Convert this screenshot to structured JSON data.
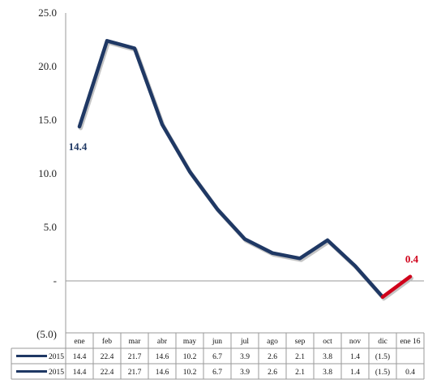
{
  "chart_data": {
    "type": "line",
    "title": "",
    "xlabel": "",
    "ylabel": "",
    "ylim": [
      -5,
      25
    ],
    "y_ticks": [
      "25.0",
      "20.0",
      "15.0",
      "10.0",
      "5.0",
      "-",
      "(5.0)"
    ],
    "grid": false,
    "categories": [
      "ene",
      "feb",
      "mar",
      "abr",
      "may",
      "jun",
      "jul",
      "ago",
      "sep",
      "oct",
      "nov",
      "dic",
      "ene 16"
    ],
    "series": [
      {
        "name": "2015",
        "color": "#1f3864",
        "values": [
          14.4,
          22.4,
          21.7,
          14.6,
          10.2,
          6.7,
          3.9,
          2.6,
          2.1,
          3.8,
          1.4,
          -1.5,
          null
        ],
        "labels": [
          "14.4",
          "22.4",
          "21.7",
          "14.6",
          "10.2",
          "6.7",
          "3.9",
          "2.6",
          "2.1",
          "3.8",
          "1.4",
          "(1.5)",
          ""
        ]
      },
      {
        "name": "2015",
        "color": "#1f3864",
        "highlight_color": "#d0021b",
        "values": [
          14.4,
          22.4,
          21.7,
          14.6,
          10.2,
          6.7,
          3.9,
          2.6,
          2.1,
          3.8,
          1.4,
          -1.5,
          0.4
        ],
        "labels": [
          "14.4",
          "22.4",
          "21.7",
          "14.6",
          "10.2",
          "6.7",
          "3.9",
          "2.6",
          "2.1",
          "3.8",
          "1.4",
          "(1.5)",
          "0.4"
        ]
      }
    ],
    "annotations": [
      {
        "text": "14.4",
        "category": "ene",
        "value": 14.4,
        "color": "#1f3864"
      },
      {
        "text": "0.4",
        "category": "ene 16",
        "value": 0.4,
        "color": "#d0021b"
      }
    ],
    "legend": "data-table-below"
  }
}
